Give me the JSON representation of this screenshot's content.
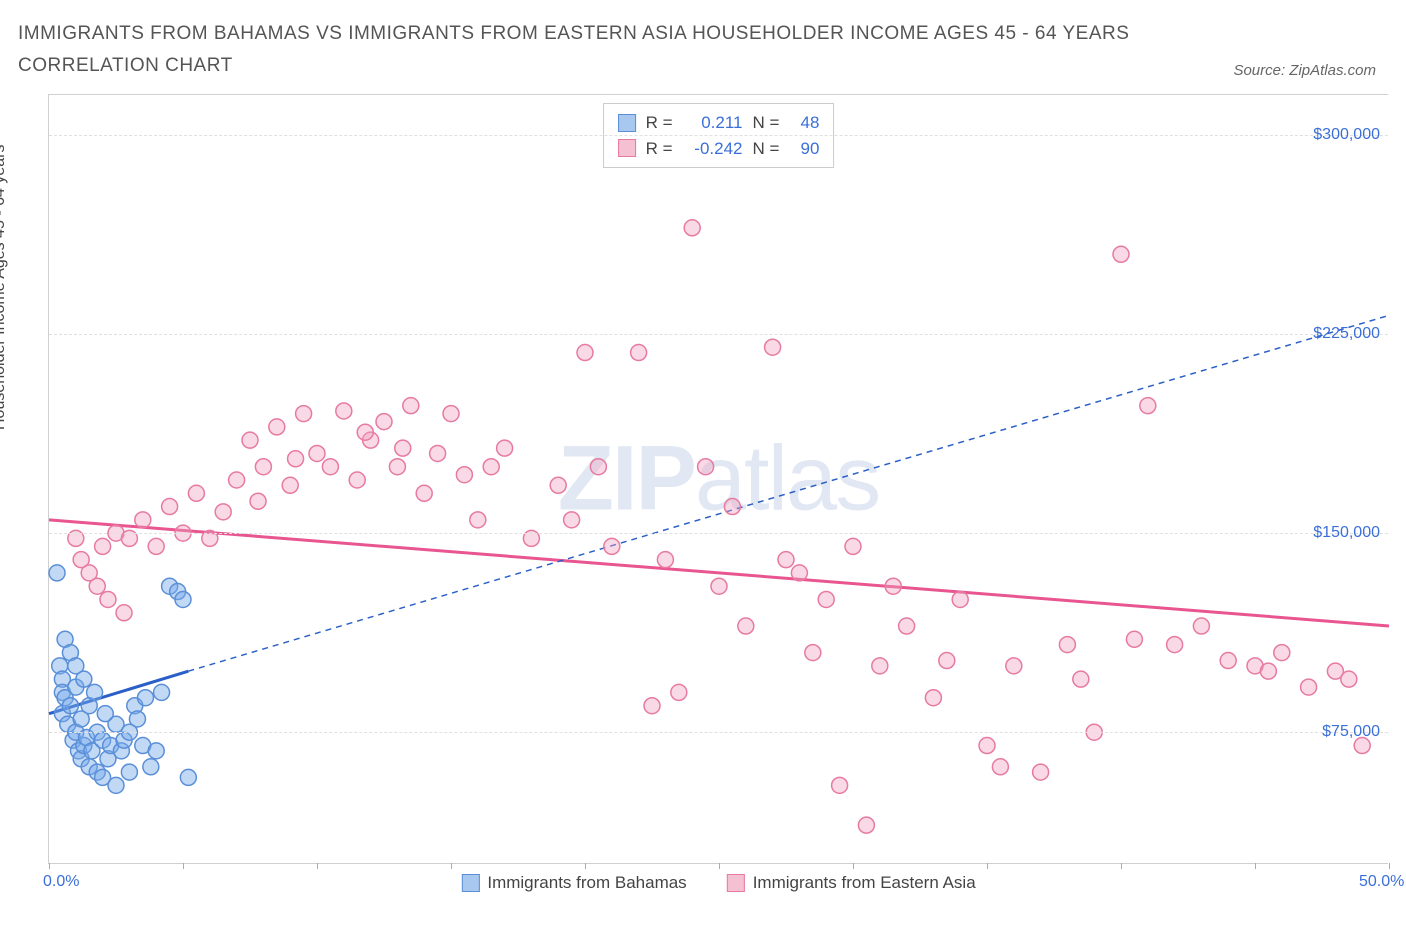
{
  "title": "IMMIGRANTS FROM BAHAMAS VS IMMIGRANTS FROM EASTERN ASIA HOUSEHOLDER INCOME AGES 45 - 64 YEARS CORRELATION CHART",
  "source": "Source: ZipAtlas.com",
  "y_axis_label": "Householder Income Ages 45 - 64 years",
  "watermark_bold": "ZIP",
  "watermark_rest": "atlas",
  "chart": {
    "type": "scatter",
    "background_color": "#ffffff",
    "grid_color": "#e0e0e0",
    "axis_text_color": "#3a6fd8",
    "x_range": [
      0,
      50
    ],
    "y_range": [
      25000,
      315000
    ],
    "y_ticks": [
      75000,
      150000,
      225000,
      300000
    ],
    "y_tick_labels": [
      "$75,000",
      "$150,000",
      "$225,000",
      "$300,000"
    ],
    "x_tick_positions": [
      0,
      5,
      10,
      15,
      20,
      25,
      30,
      35,
      40,
      45,
      50
    ],
    "x_tick_labels_shown": {
      "0": "0.0%",
      "50": "50.0%"
    },
    "marker_radius": 8,
    "marker_stroke_width": 1.5,
    "trend_line_width_solid": 3,
    "trend_line_width_dashed": 1.5,
    "series": [
      {
        "name": "Immigrants from Bahamas",
        "color_fill": "rgba(120,170,235,0.45)",
        "color_stroke": "#5a8fd8",
        "swatch_fill": "#a8c8f0",
        "swatch_border": "#5a8fd8",
        "R": "0.211",
        "N": "48",
        "trend_color": "#2a5fc8",
        "trend_solid": {
          "x1": 0,
          "y1": 82000,
          "x2": 5.2,
          "y2": 98000
        },
        "trend_dashed": {
          "x1": 5.2,
          "y1": 98000,
          "x2": 50,
          "y2": 232000
        },
        "points": [
          [
            0.3,
            135000
          ],
          [
            0.4,
            100000
          ],
          [
            0.5,
            95000
          ],
          [
            0.5,
            90000
          ],
          [
            0.5,
            82000
          ],
          [
            0.6,
            110000
          ],
          [
            0.6,
            88000
          ],
          [
            0.7,
            78000
          ],
          [
            0.8,
            105000
          ],
          [
            0.8,
            85000
          ],
          [
            0.9,
            72000
          ],
          [
            1.0,
            92000
          ],
          [
            1.0,
            75000
          ],
          [
            1.1,
            68000
          ],
          [
            1.2,
            80000
          ],
          [
            1.2,
            65000
          ],
          [
            1.3,
            70000
          ],
          [
            1.4,
            73000
          ],
          [
            1.5,
            62000
          ],
          [
            1.5,
            85000
          ],
          [
            1.6,
            68000
          ],
          [
            1.7,
            90000
          ],
          [
            1.8,
            75000
          ],
          [
            1.8,
            60000
          ],
          [
            2.0,
            72000
          ],
          [
            2.0,
            58000
          ],
          [
            2.2,
            65000
          ],
          [
            2.3,
            70000
          ],
          [
            2.5,
            55000
          ],
          [
            2.5,
            78000
          ],
          [
            2.7,
            68000
          ],
          [
            2.8,
            72000
          ],
          [
            3.0,
            75000
          ],
          [
            3.0,
            60000
          ],
          [
            3.2,
            85000
          ],
          [
            3.3,
            80000
          ],
          [
            3.5,
            70000
          ],
          [
            3.8,
            62000
          ],
          [
            4.0,
            68000
          ],
          [
            4.2,
            90000
          ],
          [
            4.5,
            130000
          ],
          [
            4.8,
            128000
          ],
          [
            5.0,
            125000
          ],
          [
            5.2,
            58000
          ],
          [
            1.0,
            100000
          ],
          [
            1.3,
            95000
          ],
          [
            2.1,
            82000
          ],
          [
            3.6,
            88000
          ]
        ]
      },
      {
        "name": "Immigrants from Eastern Asia",
        "color_fill": "rgba(240,160,190,0.40)",
        "color_stroke": "#e77aa0",
        "swatch_fill": "#f5c0d2",
        "swatch_border": "#e77aa0",
        "R": "-0.242",
        "N": "90",
        "trend_color": "#e85590",
        "trend_solid": {
          "x1": 0,
          "y1": 155000,
          "x2": 50,
          "y2": 115000
        },
        "points": [
          [
            1.0,
            148000
          ],
          [
            1.2,
            140000
          ],
          [
            1.5,
            135000
          ],
          [
            1.8,
            130000
          ],
          [
            2.0,
            145000
          ],
          [
            2.2,
            125000
          ],
          [
            2.5,
            150000
          ],
          [
            2.8,
            120000
          ],
          [
            3.0,
            148000
          ],
          [
            3.5,
            155000
          ],
          [
            4.0,
            145000
          ],
          [
            4.5,
            160000
          ],
          [
            5.0,
            150000
          ],
          [
            5.5,
            165000
          ],
          [
            6.0,
            148000
          ],
          [
            7.0,
            170000
          ],
          [
            7.5,
            185000
          ],
          [
            8.0,
            175000
          ],
          [
            8.5,
            190000
          ],
          [
            9.0,
            168000
          ],
          [
            9.5,
            195000
          ],
          [
            10.0,
            180000
          ],
          [
            10.5,
            175000
          ],
          [
            11.0,
            196000
          ],
          [
            11.5,
            170000
          ],
          [
            12.0,
            185000
          ],
          [
            12.5,
            192000
          ],
          [
            13.0,
            175000
          ],
          [
            13.5,
            198000
          ],
          [
            14.0,
            165000
          ],
          [
            14.5,
            180000
          ],
          [
            15.0,
            195000
          ],
          [
            15.5,
            172000
          ],
          [
            16.0,
            155000
          ],
          [
            17.0,
            182000
          ],
          [
            18.0,
            148000
          ],
          [
            19.0,
            168000
          ],
          [
            20.0,
            218000
          ],
          [
            20.5,
            175000
          ],
          [
            21.0,
            145000
          ],
          [
            22.0,
            218000
          ],
          [
            22.5,
            85000
          ],
          [
            23.0,
            140000
          ],
          [
            24.0,
            265000
          ],
          [
            24.5,
            175000
          ],
          [
            25.0,
            130000
          ],
          [
            25.5,
            160000
          ],
          [
            26.0,
            115000
          ],
          [
            27.0,
            220000
          ],
          [
            27.5,
            140000
          ],
          [
            28.0,
            135000
          ],
          [
            28.5,
            105000
          ],
          [
            29.0,
            125000
          ],
          [
            30.0,
            145000
          ],
          [
            30.5,
            40000
          ],
          [
            31.0,
            100000
          ],
          [
            31.5,
            130000
          ],
          [
            32.0,
            115000
          ],
          [
            33.0,
            88000
          ],
          [
            33.5,
            102000
          ],
          [
            34.0,
            125000
          ],
          [
            35.0,
            70000
          ],
          [
            35.5,
            62000
          ],
          [
            36.0,
            100000
          ],
          [
            37.0,
            60000
          ],
          [
            38.0,
            108000
          ],
          [
            38.5,
            95000
          ],
          [
            39.0,
            75000
          ],
          [
            40.0,
            255000
          ],
          [
            40.5,
            110000
          ],
          [
            41.0,
            198000
          ],
          [
            42.0,
            108000
          ],
          [
            43.0,
            115000
          ],
          [
            44.0,
            102000
          ],
          [
            45.0,
            100000
          ],
          [
            46.0,
            105000
          ],
          [
            47.0,
            92000
          ],
          [
            48.0,
            98000
          ],
          [
            48.5,
            95000
          ],
          [
            49.0,
            70000
          ],
          [
            6.5,
            158000
          ],
          [
            7.8,
            162000
          ],
          [
            9.2,
            178000
          ],
          [
            11.8,
            188000
          ],
          [
            13.2,
            182000
          ],
          [
            16.5,
            175000
          ],
          [
            19.5,
            155000
          ],
          [
            23.5,
            90000
          ],
          [
            29.5,
            55000
          ],
          [
            45.5,
            98000
          ]
        ]
      }
    ]
  },
  "legend_labels": {
    "r_prefix": "R =",
    "n_prefix": "N ="
  }
}
